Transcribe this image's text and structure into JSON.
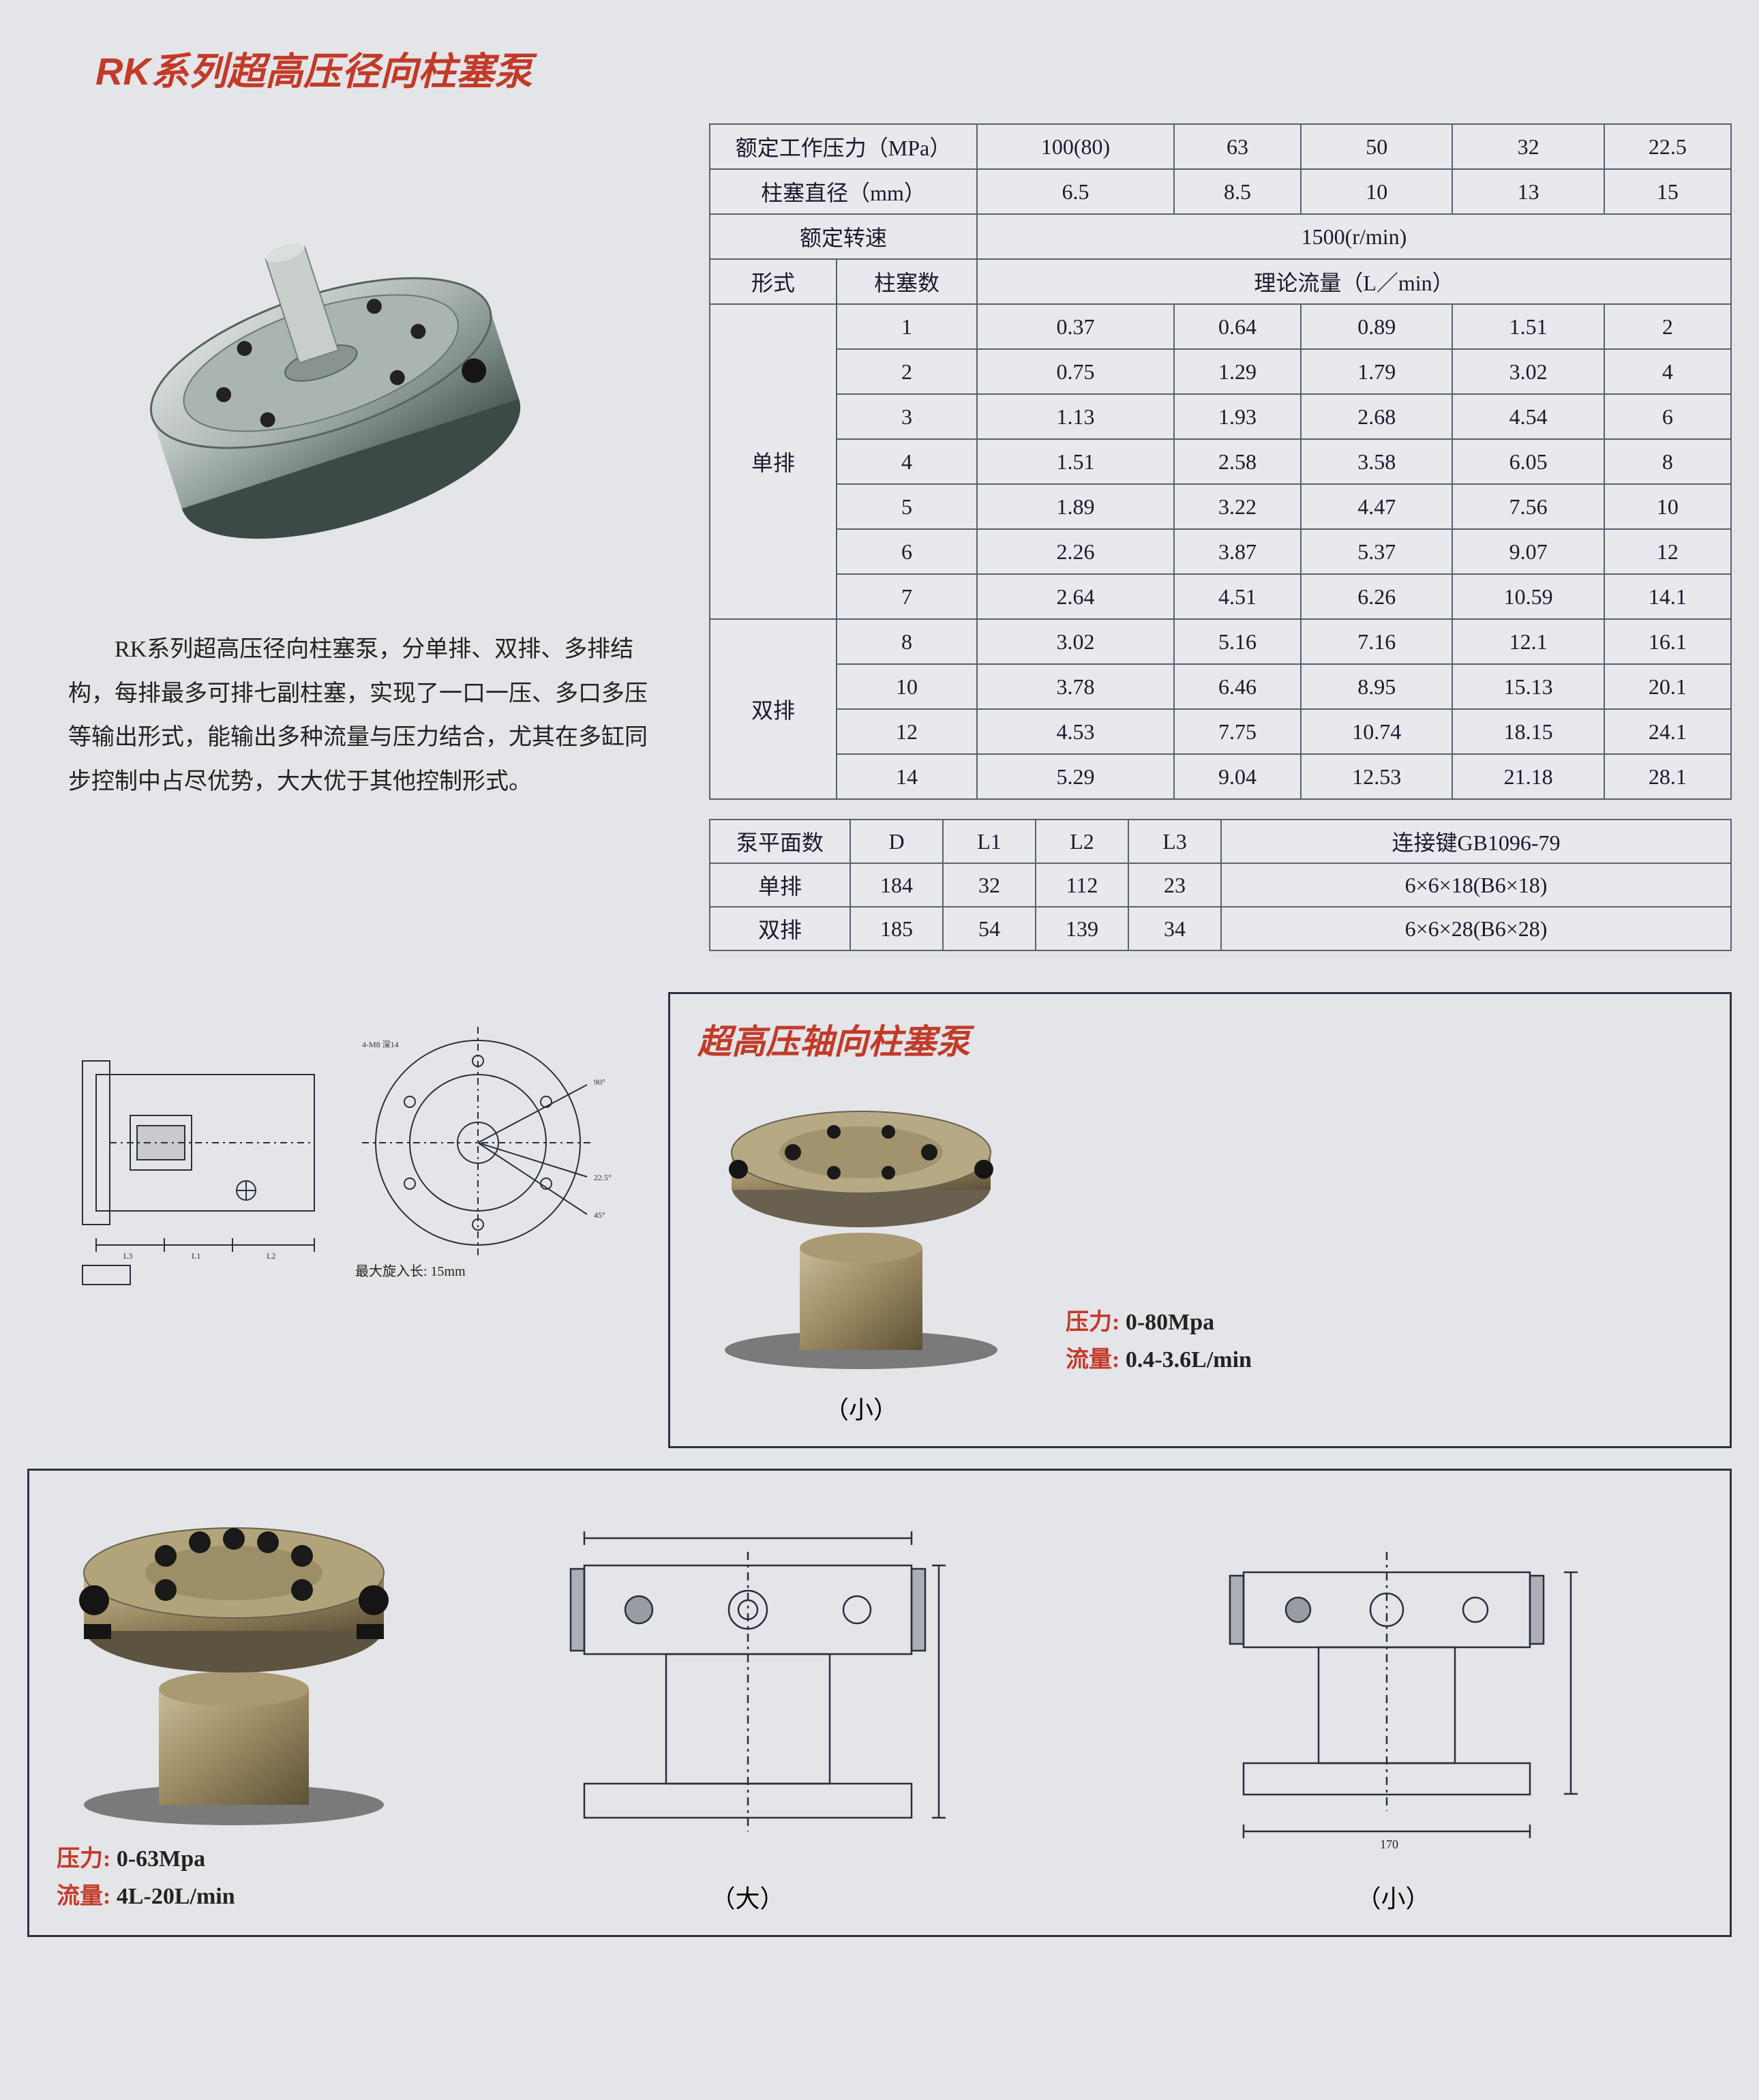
{
  "title": "RK系列超高压径向柱塞泵",
  "description": "RK系列超高压径向柱塞泵，分单排、双排、多排结构，每排最多可排七副柱塞，实现了一口一压、多口多压等输出形式，能输出多种流量与压力结合，尤其在多缸同步控制中占尽优势，大大优于其他控制形式。",
  "table1": {
    "pressure_header": "额定工作压力（MPa）",
    "pressure_values": [
      "100(80)",
      "63",
      "50",
      "32",
      "22.5"
    ],
    "diameter_header": "柱塞直径（mm）",
    "diameter_values": [
      "6.5",
      "8.5",
      "10",
      "13",
      "15"
    ],
    "speed_header": "额定转速",
    "speed_value": "1500(r/min)",
    "form_header": "形式",
    "plunger_header": "柱塞数",
    "flow_header": "理论流量（L／min）",
    "single_row_label": "单排",
    "double_row_label": "双排",
    "rows": [
      {
        "g": "s",
        "n": "1",
        "v": [
          "0.37",
          "0.64",
          "0.89",
          "1.51",
          "2"
        ]
      },
      {
        "g": "s",
        "n": "2",
        "v": [
          "0.75",
          "1.29",
          "1.79",
          "3.02",
          "4"
        ]
      },
      {
        "g": "s",
        "n": "3",
        "v": [
          "1.13",
          "1.93",
          "2.68",
          "4.54",
          "6"
        ]
      },
      {
        "g": "s",
        "n": "4",
        "v": [
          "1.51",
          "2.58",
          "3.58",
          "6.05",
          "8"
        ]
      },
      {
        "g": "s",
        "n": "5",
        "v": [
          "1.89",
          "3.22",
          "4.47",
          "7.56",
          "10"
        ]
      },
      {
        "g": "s",
        "n": "6",
        "v": [
          "2.26",
          "3.87",
          "5.37",
          "9.07",
          "12"
        ]
      },
      {
        "g": "s",
        "n": "7",
        "v": [
          "2.64",
          "4.51",
          "6.26",
          "10.59",
          "14.1"
        ]
      },
      {
        "g": "d",
        "n": "8",
        "v": [
          "3.02",
          "5.16",
          "7.16",
          "12.1",
          "16.1"
        ]
      },
      {
        "g": "d",
        "n": "10",
        "v": [
          "3.78",
          "6.46",
          "8.95",
          "15.13",
          "20.1"
        ]
      },
      {
        "g": "d",
        "n": "12",
        "v": [
          "4.53",
          "7.75",
          "10.74",
          "18.15",
          "24.1"
        ]
      },
      {
        "g": "d",
        "n": "14",
        "v": [
          "5.29",
          "9.04",
          "12.53",
          "21.18",
          "28.1"
        ]
      }
    ]
  },
  "table2": {
    "headers": [
      "泵平面数",
      "D",
      "L1",
      "L2",
      "L3",
      "连接键GB1096-79"
    ],
    "rows": [
      [
        "单排",
        "184",
        "32",
        "112",
        "23",
        "6×6×18(B6×18)"
      ],
      [
        "双排",
        "185",
        "54",
        "139",
        "34",
        "6×6×28(B6×28)"
      ]
    ]
  },
  "section2": {
    "title": "超高压轴向柱塞泵",
    "small": {
      "label": "（小）",
      "pressure_label": "压力:",
      "pressure_value": "0-80Mpa",
      "flow_label": "流量:",
      "flow_value": "0.4-3.6L/min"
    },
    "large": {
      "label": "（大）",
      "pressure_label": "压力:",
      "pressure_value": "0-63Mpa",
      "flow_label": "流量:",
      "flow_value": "4L-20L/min"
    },
    "diag_large_label": "（大）",
    "diag_small_label": "（小）"
  },
  "diagram_small_note": "最大旋入长: 15mm",
  "colors": {
    "accent": "#c23a28",
    "border": "#5a6070",
    "bg": "#e4e5e8",
    "metal_light": "#b8beba",
    "metal_mid": "#8a9490",
    "metal_dark": "#4a5a56",
    "metal_gold": "#9a8860"
  }
}
